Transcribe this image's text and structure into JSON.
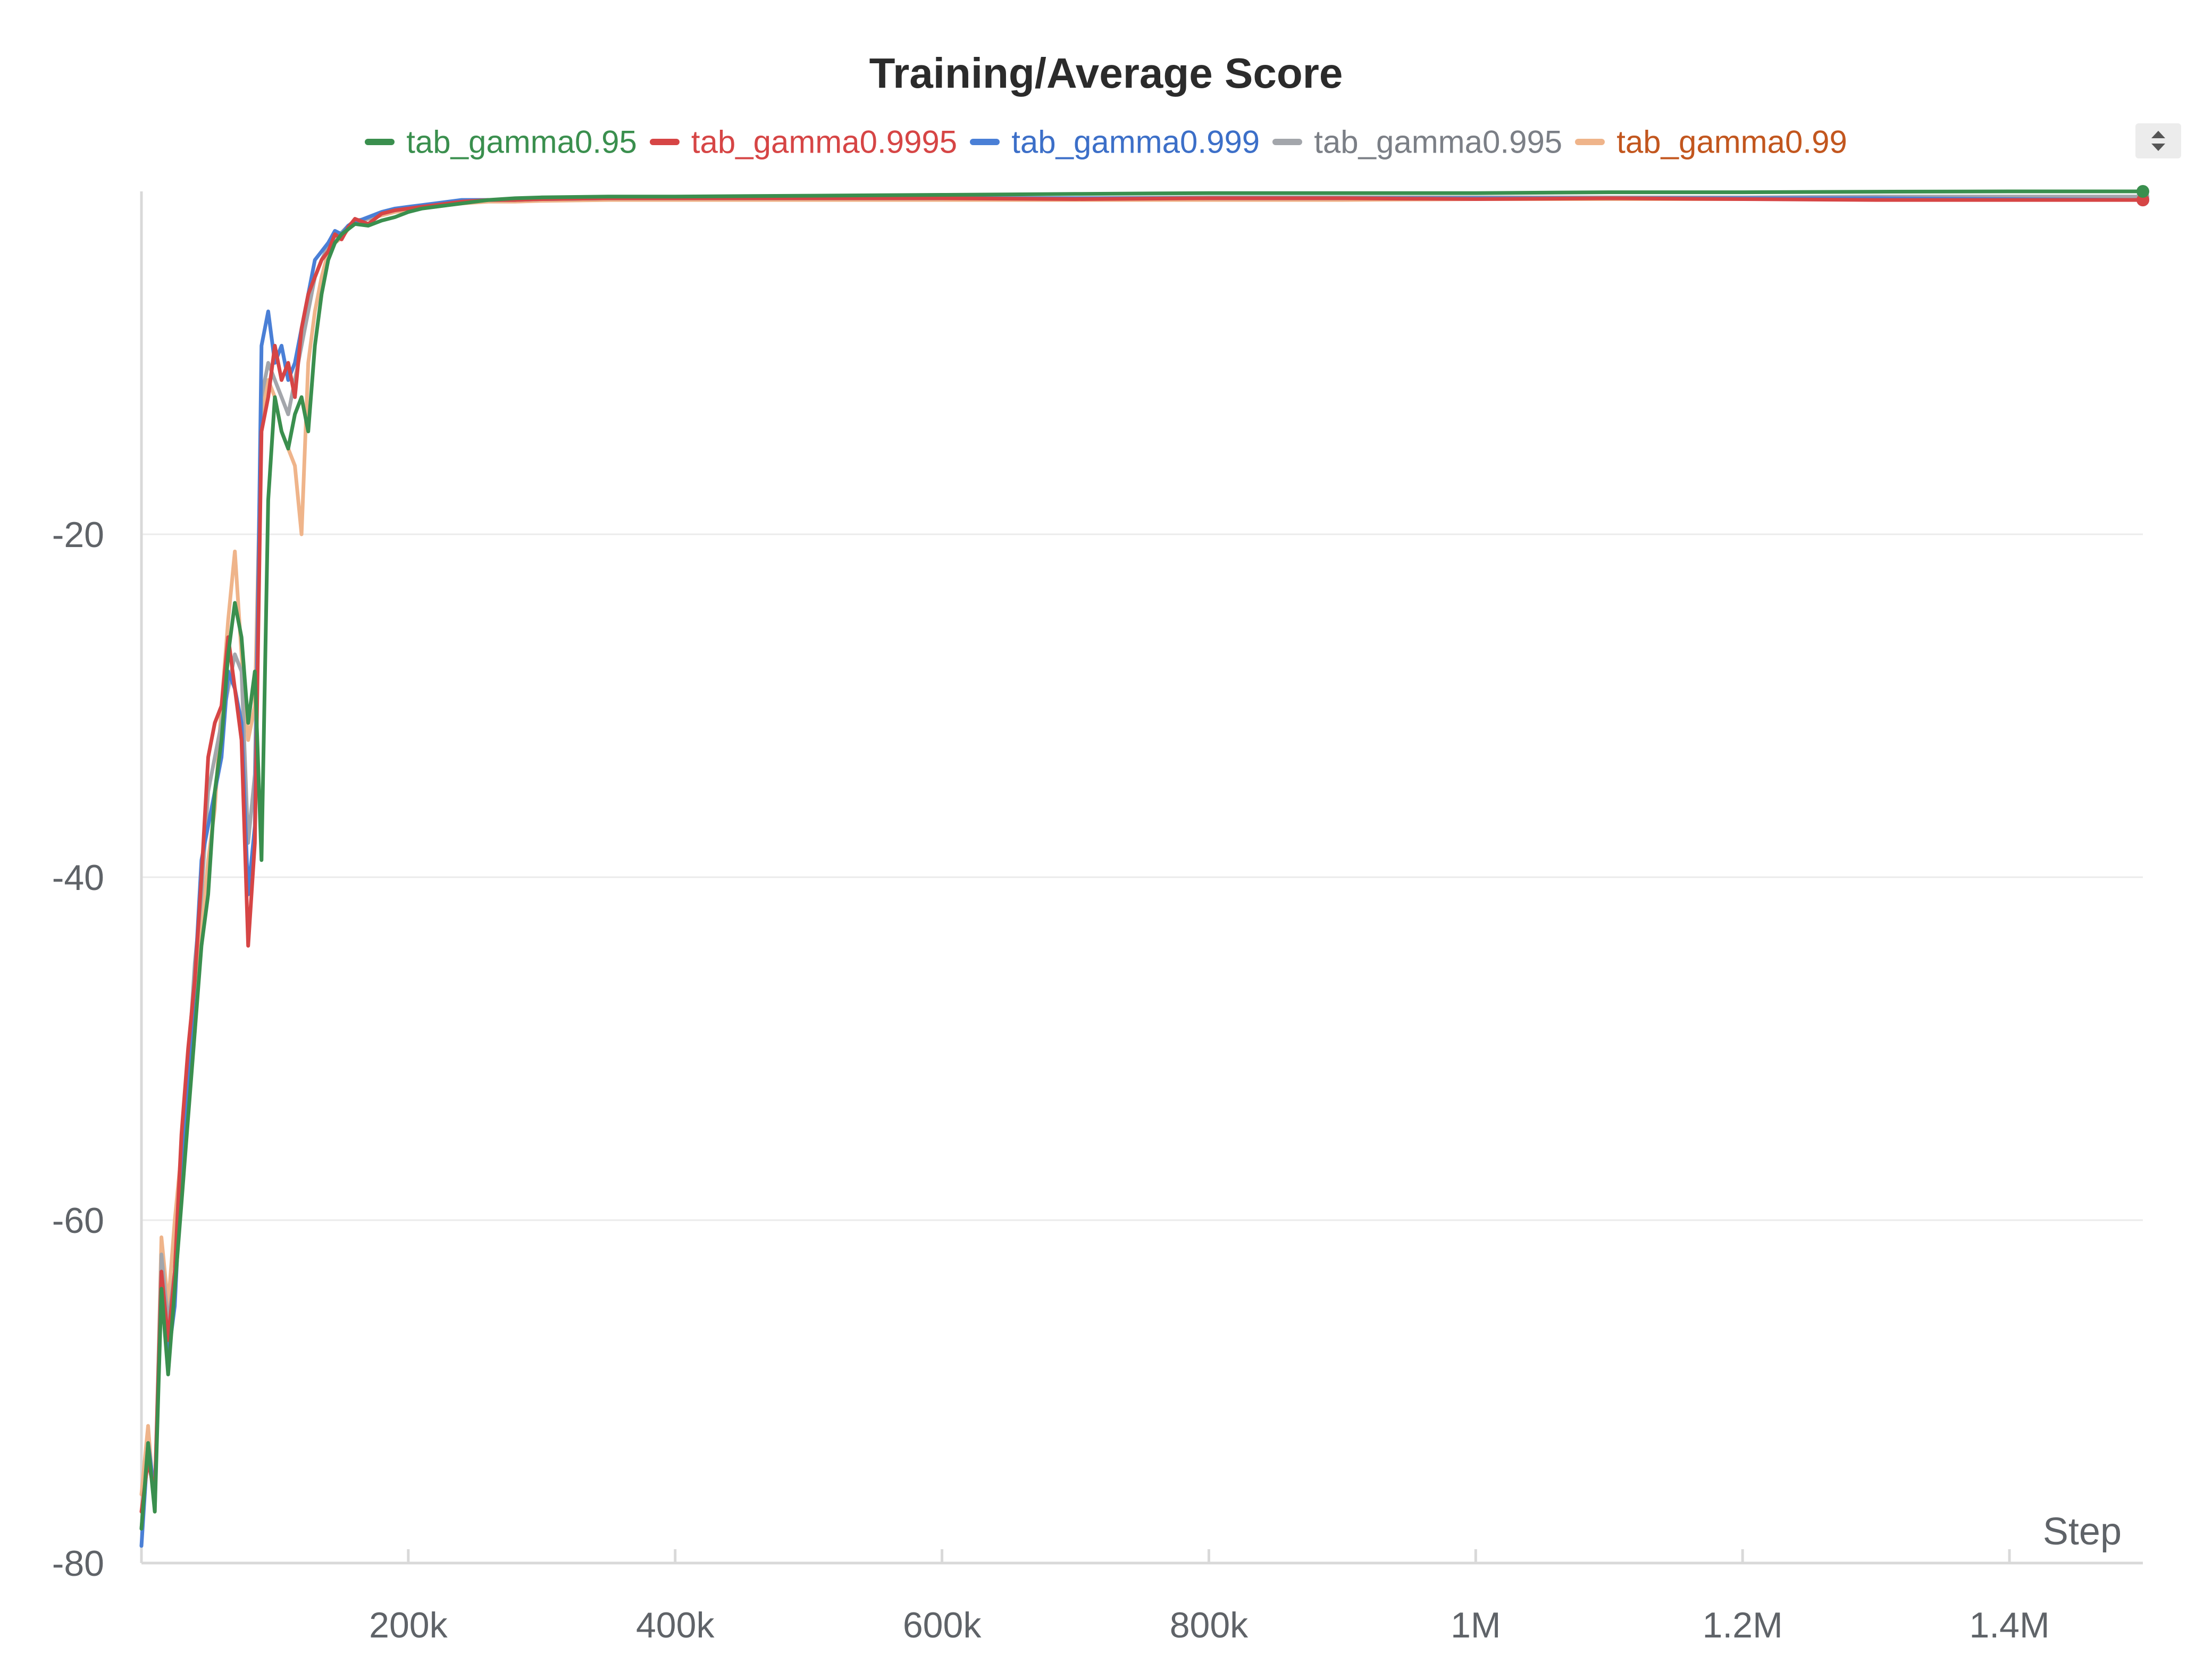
{
  "chart_data": {
    "type": "line",
    "title": "Training/Average Score",
    "xlabel": "Step",
    "ylabel": "",
    "xlim": [
      0,
      1500000
    ],
    "ylim": [
      -80,
      0
    ],
    "grid": true,
    "legend_position": "top",
    "x_ticks": [
      {
        "value": 200000,
        "label": "200k"
      },
      {
        "value": 400000,
        "label": "400k"
      },
      {
        "value": 600000,
        "label": "600k"
      },
      {
        "value": 800000,
        "label": "800k"
      },
      {
        "value": 1000000,
        "label": "1M"
      },
      {
        "value": 1200000,
        "label": "1.2M"
      },
      {
        "value": 1400000,
        "label": "1.4M"
      }
    ],
    "y_ticks": [
      {
        "value": -20,
        "label": "-20"
      },
      {
        "value": -40,
        "label": "-40"
      },
      {
        "value": -60,
        "label": "-60"
      },
      {
        "value": -80,
        "label": "-80"
      }
    ],
    "x": [
      0,
      5000,
      10000,
      15000,
      20000,
      25000,
      30000,
      35000,
      40000,
      45000,
      50000,
      55000,
      60000,
      65000,
      70000,
      75000,
      80000,
      85000,
      90000,
      95000,
      100000,
      105000,
      110000,
      115000,
      120000,
      125000,
      130000,
      135000,
      140000,
      145000,
      150000,
      155000,
      160000,
      170000,
      180000,
      190000,
      200000,
      210000,
      220000,
      230000,
      240000,
      260000,
      280000,
      300000,
      350000,
      400000,
      500000,
      600000,
      700000,
      800000,
      900000,
      1000000,
      1100000,
      1200000,
      1300000,
      1400000,
      1500000
    ],
    "series": [
      {
        "name": "tab_gamma0.95",
        "color": "#3a8f4e",
        "legend_text_color": "#3a8f4e",
        "values": [
          -78,
          -73,
          -77,
          -64,
          -69,
          -64,
          -59,
          -54,
          -49,
          -44,
          -41,
          -35,
          -32,
          -27,
          -24,
          -26,
          -31,
          -28,
          -39,
          -18,
          -12,
          -14,
          -15,
          -13,
          -12,
          -14,
          -9,
          -6,
          -4,
          -3,
          -2.5,
          -2.2,
          -1.9,
          -2,
          -1.7,
          -1.5,
          -1.2,
          -1.0,
          -0.9,
          -0.8,
          -0.7,
          -0.5,
          -0.4,
          -0.35,
          -0.3,
          -0.3,
          -0.25,
          -0.2,
          -0.15,
          -0.1,
          -0.1,
          -0.1,
          -0.05,
          -0.05,
          -0.02,
          0.0,
          0.0
        ]
      },
      {
        "name": "tab_gamma0.9995",
        "color": "#d64545",
        "legend_text_color": "#d64545",
        "values": [
          -77,
          -74,
          -76,
          -63,
          -67,
          -63,
          -55,
          -50,
          -46,
          -40,
          -33,
          -31,
          -30,
          -26,
          -29,
          -32,
          -44,
          -38,
          -14,
          -12,
          -9,
          -11,
          -10,
          -12,
          -8,
          -6,
          -5,
          -4,
          -3.5,
          -2.5,
          -2.8,
          -2.1,
          -1.6,
          -1.9,
          -1.3,
          -1.1,
          -1.0,
          -0.9,
          -0.8,
          -0.7,
          -0.6,
          -0.5,
          -0.5,
          -0.45,
          -0.4,
          -0.4,
          -0.4,
          -0.4,
          -0.45,
          -0.4,
          -0.4,
          -0.45,
          -0.4,
          -0.45,
          -0.5,
          -0.5,
          -0.5
        ]
      },
      {
        "name": "tab_gamma0.999",
        "color": "#4a7fd6",
        "legend_text_color": "#3c6fc8",
        "values": [
          -79,
          -73,
          -76,
          -64,
          -68,
          -65,
          -57,
          -52,
          -46,
          -39,
          -37,
          -35,
          -33,
          -28,
          -29,
          -31,
          -41,
          -37,
          -9,
          -7,
          -10,
          -9,
          -11,
          -10,
          -8,
          -6,
          -4,
          -3.5,
          -3,
          -2.3,
          -2.5,
          -2.0,
          -1.8,
          -1.5,
          -1.2,
          -1.0,
          -0.9,
          -0.8,
          -0.7,
          -0.6,
          -0.5,
          -0.5,
          -0.5,
          -0.45,
          -0.4,
          -0.4,
          -0.4,
          -0.4,
          -0.4,
          -0.4,
          -0.4,
          -0.4,
          -0.4,
          -0.4,
          -0.4,
          -0.45,
          -0.5
        ]
      },
      {
        "name": "tab_gamma0.995",
        "color": "#a3a6ab",
        "legend_text_color": "#7b7f86",
        "values": [
          -78,
          -73,
          -76,
          -62,
          -66,
          -63,
          -56,
          -51,
          -45,
          -41,
          -35,
          -33,
          -31,
          -29,
          -27,
          -28,
          -38,
          -34,
          -12,
          -10,
          -11,
          -12,
          -13,
          -11,
          -9,
          -7,
          -5,
          -4,
          -3.2,
          -2.6,
          -2.4,
          -2.0,
          -1.7,
          -1.6,
          -1.3,
          -1.1,
          -1.0,
          -0.9,
          -0.8,
          -0.7,
          -0.6,
          -0.5,
          -0.5,
          -0.45,
          -0.4,
          -0.4,
          -0.4,
          -0.4,
          -0.4,
          -0.35,
          -0.35,
          -0.35,
          -0.35,
          -0.35,
          -0.3,
          -0.3,
          -0.3
        ]
      },
      {
        "name": "tab_gamma0.99",
        "color": "#efb48a",
        "legend_text_color": "#c2561e",
        "values": [
          -76,
          -72,
          -77,
          -61,
          -65,
          -60,
          -56,
          -52,
          -49,
          -43,
          -39,
          -36,
          -30,
          -25,
          -21,
          -27,
          -32,
          -30,
          -13,
          -11,
          -12,
          -14,
          -15,
          -16,
          -20,
          -10,
          -7,
          -5,
          -3.5,
          -3,
          -2.7,
          -2.2,
          -1.8,
          -1.6,
          -1.4,
          -1.2,
          -1.1,
          -1.0,
          -0.9,
          -0.8,
          -0.7,
          -0.6,
          -0.6,
          -0.55,
          -0.5,
          -0.5,
          -0.5,
          -0.5,
          -0.5,
          -0.5,
          -0.5,
          -0.45,
          -0.45,
          -0.45,
          -0.45,
          -0.4,
          -0.4
        ]
      }
    ]
  },
  "colors": {
    "background": "#ffffff",
    "gridline": "#ebebeb",
    "axis": "#d9d9d9",
    "tick_text": "#5f6368"
  }
}
